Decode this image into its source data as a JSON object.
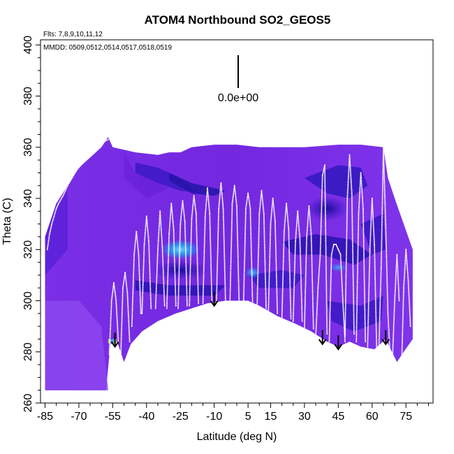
{
  "chart_data": {
    "type": "heatmap",
    "title": "ATOM4 Northbound SO2_GEOS5",
    "flights_note": "Flts: 7,8,9,10,11,12",
    "dates_note": "MMDD: 0509,0512,0514,0517,0518,0519",
    "xlabel": "Latitude (deg N)",
    "ylabel": "Theta (C)",
    "xlim": [
      -87,
      87
    ],
    "ylim": [
      260,
      402
    ],
    "x_ticks": [
      -85,
      -70,
      -55,
      -40,
      -25,
      -10,
      5,
      15,
      30,
      45,
      60,
      75
    ],
    "x_tick_labels": [
      "-85",
      "-70",
      "-55",
      "-40",
      "-25",
      "-10",
      "5",
      "15",
      "30",
      "45",
      "60",
      "75"
    ],
    "y_ticks": [
      260,
      280,
      300,
      320,
      340,
      360,
      380,
      400
    ],
    "y_tick_labels": [
      "260",
      "280",
      "300",
      "320",
      "340",
      "360",
      "380",
      "400"
    ],
    "scale_label": "0.0e+00",
    "colors": {
      "field_base": "#7a2fe6",
      "field_dark": "#2a10b8",
      "field_light": "#8c47ef",
      "highlight_cyan": "#33a0ff",
      "flight_track": "#ffffff",
      "surface": "#3a14b0"
    },
    "surface_boundary": [
      [
        -56,
        283
      ],
      [
        -53,
        284
      ],
      [
        -50,
        276
      ],
      [
        -47,
        283
      ],
      [
        -42,
        288
      ],
      [
        -35,
        292
      ],
      [
        -27,
        295
      ],
      [
        -20,
        297
      ],
      [
        -13,
        299
      ],
      [
        -5,
        300
      ],
      [
        5,
        300
      ],
      [
        10,
        298
      ],
      [
        18,
        294
      ],
      [
        26,
        291
      ],
      [
        33,
        288
      ],
      [
        40,
        284
      ],
      [
        45,
        282
      ],
      [
        50,
        284
      ],
      [
        55,
        282
      ],
      [
        61,
        281
      ],
      [
        66,
        285
      ],
      [
        71,
        276
      ]
    ],
    "arrow_markers": [
      {
        "lat": -54,
        "theta": 282
      },
      {
        "lat": -10,
        "theta": 298
      },
      {
        "lat": 38,
        "theta": 283
      },
      {
        "lat": 45,
        "theta": 281
      },
      {
        "lat": 66,
        "theta": 283
      }
    ],
    "flight_profiles": [
      {
        "x": [
          -84,
          -83,
          -82,
          -81,
          -80,
          -79
        ],
        "y": [
          320,
          326,
          330,
          333,
          336,
          338
        ]
      },
      {
        "x": [
          -79,
          -77,
          -75,
          -73,
          -71,
          -69,
          -67,
          -65,
          -63,
          -61,
          -59,
          -57
        ],
        "y": [
          338,
          341,
          345,
          348,
          351,
          353,
          355,
          357,
          358,
          360,
          362,
          363
        ]
      },
      {
        "x": [
          -56.5,
          -55.5,
          -54.5,
          -53.5,
          -52.5
        ],
        "y": [
          279,
          300,
          307,
          300,
          284
        ]
      },
      {
        "x": [
          -51.5,
          -50.5,
          -49.5,
          -48.5,
          -47.5
        ],
        "y": [
          276,
          305,
          311,
          303,
          284
        ]
      },
      {
        "x": [
          -46.5,
          -45.5,
          -44.5,
          -43.5,
          -42.5
        ],
        "y": [
          290,
          318,
          327,
          318,
          295
        ]
      },
      {
        "x": [
          -42,
          -41,
          -40,
          -39,
          -38
        ],
        "y": [
          295,
          322,
          333,
          323,
          297
        ]
      },
      {
        "x": [
          -36,
          -35,
          -34,
          -33,
          -32
        ],
        "y": [
          297,
          320,
          335,
          321,
          298
        ]
      },
      {
        "x": [
          -31,
          -30,
          -29,
          -28,
          -27
        ],
        "y": [
          297,
          326,
          338,
          328,
          298
        ]
      },
      {
        "x": [
          -26,
          -25,
          -24,
          -23,
          -22
        ],
        "y": [
          297,
          330,
          339,
          331,
          298
        ]
      },
      {
        "x": [
          -21,
          -20,
          -19,
          -18,
          -17
        ],
        "y": [
          298,
          332,
          341,
          334,
          299
        ]
      },
      {
        "x": [
          -15,
          -14,
          -13,
          -12,
          -11
        ],
        "y": [
          299,
          333,
          344,
          334,
          299
        ]
      },
      {
        "x": [
          -9,
          -8,
          -7,
          -6,
          -5
        ],
        "y": [
          300,
          336,
          346,
          336,
          300
        ]
      },
      {
        "x": [
          -3,
          -2,
          -1,
          0,
          1
        ],
        "y": [
          300,
          338,
          345,
          337,
          300
        ]
      },
      {
        "x": [
          3,
          4,
          5,
          6,
          7
        ],
        "y": [
          299,
          336,
          342,
          336,
          299
        ]
      },
      {
        "x": [
          9,
          10,
          11,
          12,
          13
        ],
        "y": [
          297,
          334,
          343,
          334,
          297
        ]
      },
      {
        "x": [
          14,
          15,
          16,
          17,
          18
        ],
        "y": [
          295,
          330,
          340,
          331,
          295
        ]
      },
      {
        "x": [
          20,
          21,
          22,
          23,
          24
        ],
        "y": [
          293,
          327,
          338,
          328,
          293
        ]
      },
      {
        "x": [
          25,
          26,
          27,
          28,
          29
        ],
        "y": [
          292,
          323,
          335,
          324,
          292
        ]
      },
      {
        "x": [
          30,
          31,
          32,
          33,
          34
        ],
        "y": [
          289,
          325,
          337,
          326,
          289
        ]
      },
      {
        "x": [
          35,
          36,
          37,
          38,
          39,
          40
        ],
        "y": [
          286,
          305,
          318,
          349,
          353,
          287
        ]
      },
      {
        "x": [
          41,
          42,
          43,
          44,
          45,
          46,
          47,
          48
        ],
        "y": [
          284,
          318,
          322,
          322,
          320,
          318,
          300,
          284
        ]
      },
      {
        "x": [
          48,
          49,
          50,
          51,
          52
        ],
        "y": [
          286,
          340,
          357,
          342,
          287
        ]
      },
      {
        "x": [
          53,
          54,
          55,
          56,
          57
        ],
        "y": [
          284,
          334,
          350,
          336,
          284
        ]
      },
      {
        "x": [
          58,
          59,
          60,
          61,
          62
        ],
        "y": [
          282,
          320,
          340,
          322,
          282
        ]
      },
      {
        "x": [
          63,
          64,
          65,
          66,
          67,
          68
        ],
        "y": [
          281,
          313,
          360,
          330,
          295,
          278
        ]
      },
      {
        "x": [
          69,
          70,
          71,
          72
        ],
        "y": [
          277,
          300,
          318,
          300
        ]
      },
      {
        "x": [
          73,
          74,
          75,
          76,
          77
        ],
        "y": [
          272,
          305,
          320,
          308,
          290
        ]
      }
    ]
  }
}
